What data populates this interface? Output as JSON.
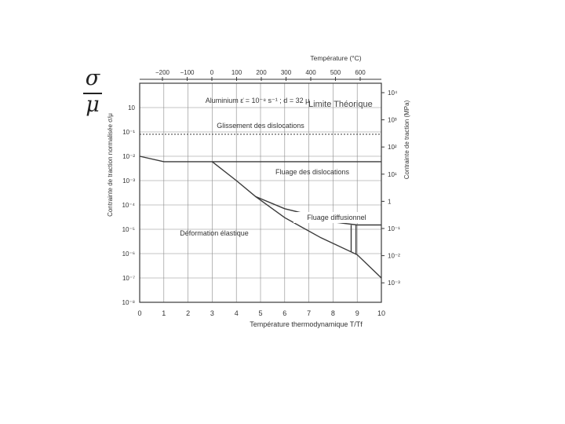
{
  "header": {
    "fraction_numerator": "σ",
    "fraction_denominator": "μ",
    "annotation": "Limite Théorique"
  },
  "colors": {
    "line": "#3a3a3a",
    "grid": "#8a8a8a",
    "background": "#ffffff"
  },
  "chart_data": {
    "type": "line",
    "title": "Aluminium ε̇ = 10⁻⁸ s⁻¹ ; d = 32 μ",
    "xlabel": "Température thermodynamique T/Tf",
    "ylabel_left": "Contrainte de traction normalisée σ/μ",
    "ylabel_right": "Contrainte de traction (MPa)",
    "top_axis_label": "Température (°C)",
    "xlim": [
      0,
      10
    ],
    "x_ticks": [
      "0",
      "1",
      "2",
      "3",
      "4",
      "5",
      "6",
      "7",
      "8",
      "9",
      "10"
    ],
    "ylim_log10": [
      -8,
      1
    ],
    "y_ticks_left": [
      "10⁻⁸",
      "10⁻⁷",
      "10⁻⁶",
      "10⁻⁵",
      "10⁻⁴",
      "10⁻³",
      "10⁻²",
      "10⁻¹",
      "10"
    ],
    "y_ticks_right": [
      "10⁴",
      "10³",
      "10²",
      "10¹",
      "1",
      "10⁻¹",
      "10⁻²",
      "10⁻³"
    ],
    "top_ticks": [
      "−200",
      "−100",
      "0",
      "100",
      "200",
      "300",
      "400",
      "500",
      "600"
    ],
    "region_labels": {
      "glide": "Glissement des dislocations",
      "creep": "Fluage des dislocations",
      "diffusional": "Fluage diffusionnel",
      "elastic": "Déformation élastique"
    },
    "series": [
      {
        "points": [
          [
            0,
            0.01
          ],
          [
            1,
            0.006
          ],
          [
            3,
            0.006
          ],
          [
            10,
            0.006
          ]
        ]
      },
      {
        "points": [
          [
            3,
            0.006
          ],
          [
            4,
            0.001
          ],
          [
            4.8,
            0.00022
          ],
          [
            6,
            3e-05
          ],
          [
            7.5,
            4.5e-06
          ],
          [
            9,
            9e-07
          ],
          [
            10,
            1e-07
          ]
        ]
      },
      {
        "points": [
          [
            4.8,
            0.00022
          ],
          [
            6,
            7e-05
          ],
          [
            7,
            4e-05
          ],
          [
            8,
            2e-05
          ],
          [
            9,
            1.5e-05
          ],
          [
            10,
            1.5e-05
          ]
        ]
      }
    ],
    "theoretical_limit": 0.08,
    "grid": true
  }
}
